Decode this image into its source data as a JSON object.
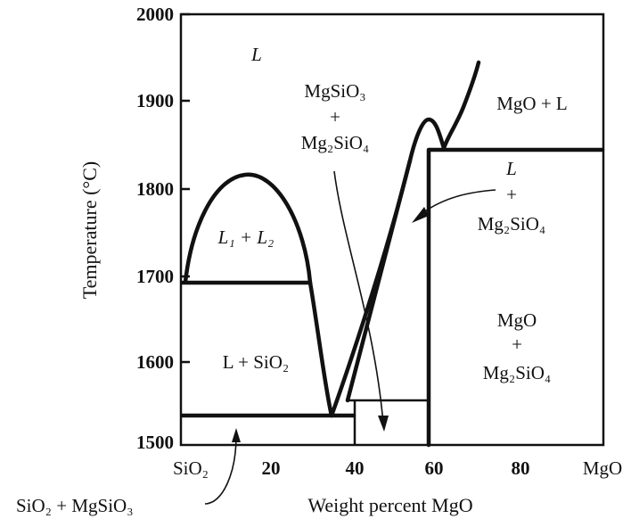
{
  "axes": {
    "ylabel": "Temperature (°C)",
    "xlabel": "Weight percent MgO",
    "y_ticks": [
      "2000",
      "1900",
      "1800",
      "1700",
      "1600",
      "1500"
    ],
    "x_ticks": [
      "20",
      "40",
      "60",
      "80"
    ],
    "x_end_left": "SiO₂",
    "x_end_right": "MgO"
  },
  "regions": {
    "liquid": "L",
    "two_liquids": "L₁ + L₂",
    "liquid_silica": "L + SiO₂",
    "mgsio3_mg2sio4_line1": "MgSiO₃",
    "mgsio3_mg2sio4_line2": "+",
    "mgsio3_mg2sio4_line3": "Mg₂SiO₄",
    "mgo_liquid": "MgO + L",
    "liq_mg2sio4_line1": "L",
    "liq_mg2sio4_line2": "+",
    "liq_mg2sio4_line3": "Mg₂SiO₄",
    "mgo_mg2sio4_line1": "MgO",
    "mgo_mg2sio4_line2": "+",
    "mgo_mg2sio4_line3": "Mg₂SiO₄",
    "silica_mgsio3": "SiO₂ + MgSiO₃"
  }
}
